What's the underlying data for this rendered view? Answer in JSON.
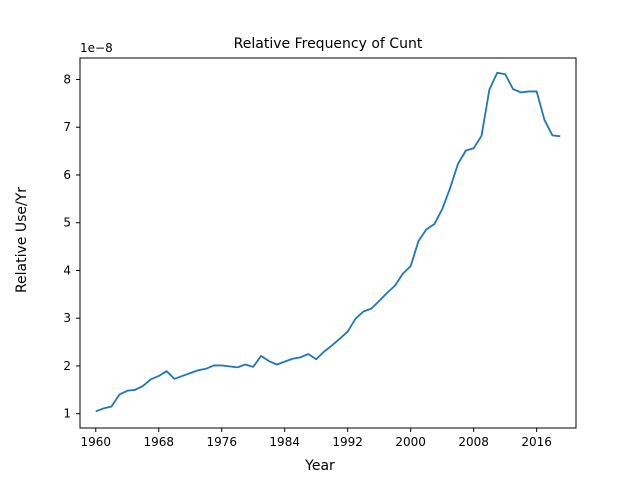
{
  "chart_data": {
    "type": "line",
    "title": "Relative Frequency of Cunt",
    "xlabel": "Year",
    "ylabel": "Relative Use/Yr",
    "y_offset_text": "1e−8",
    "xlim": [
      1958,
      2021
    ],
    "ylim": [
      0.7,
      8.45
    ],
    "x_ticks": [
      1960,
      1968,
      1976,
      1984,
      1992,
      2000,
      2008,
      2016
    ],
    "x_tick_labels": [
      "1960",
      "1968",
      "1976",
      "1984",
      "1992",
      "2000",
      "2008",
      "2016"
    ],
    "y_ticks": [
      1,
      2,
      3,
      4,
      5,
      6,
      7,
      8
    ],
    "y_tick_labels": [
      "1",
      "2",
      "3",
      "4",
      "5",
      "6",
      "7",
      "8"
    ],
    "grid": false,
    "series": [
      {
        "name": "Cunt",
        "color": "#1f77b4",
        "x": [
          1960,
          1961,
          1962,
          1963,
          1964,
          1965,
          1966,
          1967,
          1968,
          1969,
          1970,
          1971,
          1972,
          1973,
          1974,
          1975,
          1976,
          1977,
          1978,
          1979,
          1980,
          1981,
          1982,
          1983,
          1984,
          1985,
          1986,
          1987,
          1988,
          1989,
          1990,
          1991,
          1992,
          1993,
          1994,
          1995,
          1996,
          1997,
          1998,
          1999,
          2000,
          2001,
          2002,
          2003,
          2004,
          2005,
          2006,
          2007,
          2008,
          2009,
          2010,
          2011,
          2012,
          2013,
          2014,
          2015,
          2016,
          2017,
          2018,
          2019
        ],
        "values": [
          1.05,
          1.11,
          1.15,
          1.4,
          1.48,
          1.5,
          1.58,
          1.72,
          1.79,
          1.89,
          1.73,
          1.79,
          1.85,
          1.91,
          1.94,
          2.01,
          2.01,
          1.99,
          1.97,
          2.03,
          1.98,
          2.21,
          2.1,
          2.03,
          2.09,
          2.15,
          2.18,
          2.25,
          2.14,
          2.3,
          2.43,
          2.57,
          2.72,
          2.99,
          3.14,
          3.2,
          3.36,
          3.53,
          3.68,
          3.93,
          4.09,
          4.62,
          4.86,
          4.97,
          5.28,
          5.72,
          6.23,
          6.51,
          6.56,
          6.82,
          7.79,
          8.14,
          8.11,
          7.8,
          7.73,
          7.75,
          7.75,
          7.15,
          6.83,
          6.81
        ]
      }
    ]
  }
}
